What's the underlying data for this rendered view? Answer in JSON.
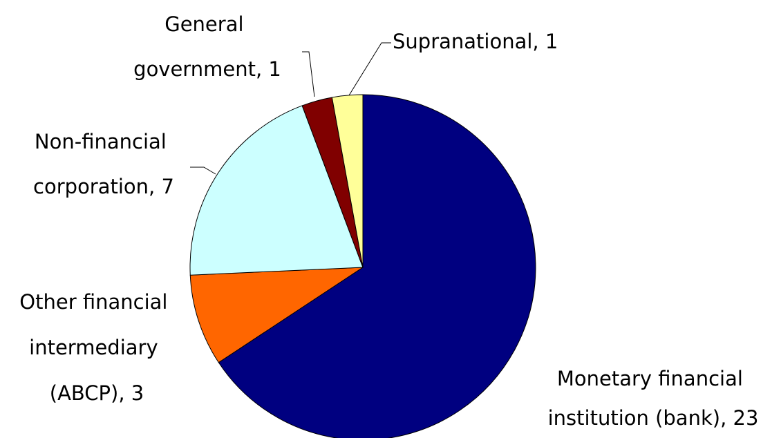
{
  "chart_data": {
    "type": "pie",
    "labels": [
      "Monetary financial institution (bank), 23",
      "Other financial intermediary (ABCP), 3",
      "Non-financial corporation, 7",
      "General government, 1",
      "Supranational, 1"
    ],
    "values": [
      23,
      3,
      7,
      1,
      1
    ],
    "colors": [
      "#000080",
      "#ff6600",
      "#ccffff",
      "#800000",
      "#ffff99"
    ]
  }
}
